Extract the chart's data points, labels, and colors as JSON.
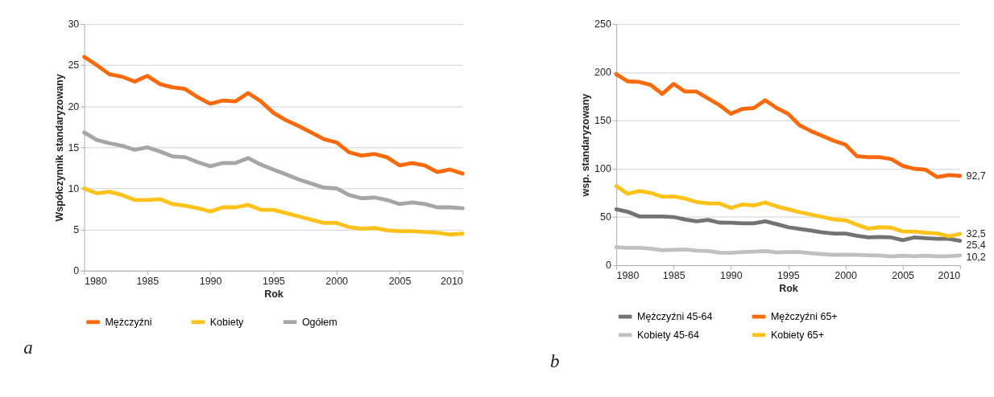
{
  "chart_data": [
    {
      "type": "line",
      "xlabel": "Rok",
      "ylabel": "Współczynnik standaryzowany",
      "x": [
        1980,
        1981,
        1982,
        1983,
        1984,
        1985,
        1986,
        1987,
        1988,
        1989,
        1990,
        1991,
        1992,
        1993,
        1994,
        1995,
        1996,
        1997,
        1998,
        1999,
        2000,
        2001,
        2002,
        2003,
        2004,
        2005,
        2006,
        2007,
        2008,
        2009,
        2010
      ],
      "xlim": [
        1980,
        2010
      ],
      "xticks": [
        1980,
        1985,
        1990,
        1995,
        2000,
        2005,
        2010
      ],
      "ylim": [
        0,
        30
      ],
      "yticks": [
        0,
        5,
        10,
        15,
        20,
        25,
        30
      ],
      "grid": "y",
      "legend": "bottom",
      "series": [
        {
          "name": "Mężczyźni",
          "color": "#fa6a0a",
          "values": [
            26,
            25,
            23.9,
            23.6,
            23,
            23.7,
            22.7,
            22.3,
            22.1,
            21.1,
            20.3,
            20.7,
            20.6,
            21.6,
            20.6,
            19.2,
            18.3,
            17.6,
            16.8,
            16,
            15.6,
            14.4,
            14,
            14.2,
            13.8,
            12.8,
            13.1,
            12.8,
            12,
            12.3,
            11.8
          ]
        },
        {
          "name": "Kobiety",
          "color": "#ffc21a",
          "values": [
            10,
            9.4,
            9.6,
            9.2,
            8.6,
            8.6,
            8.7,
            8.1,
            7.9,
            7.6,
            7.2,
            7.7,
            7.7,
            8,
            7.4,
            7.4,
            7,
            6.6,
            6.2,
            5.8,
            5.8,
            5.3,
            5.1,
            5.2,
            4.9,
            4.8,
            4.8,
            4.7,
            4.6,
            4.4,
            4.5
          ]
        },
        {
          "name": "Ogółem",
          "color": "#a6a6a6",
          "values": [
            16.8,
            15.9,
            15.5,
            15.2,
            14.7,
            15,
            14.5,
            13.9,
            13.8,
            13.2,
            12.7,
            13.1,
            13.1,
            13.7,
            12.9,
            12.3,
            11.7,
            11.1,
            10.6,
            10.1,
            10,
            9.2,
            8.8,
            8.9,
            8.6,
            8.1,
            8.3,
            8.1,
            7.7,
            7.7,
            7.6
          ]
        }
      ],
      "annotations": [
        "a"
      ]
    },
    {
      "type": "line",
      "xlabel": "Rok",
      "ylabel": "wsp. standaryzowany",
      "x": [
        1980,
        1981,
        1982,
        1983,
        1984,
        1985,
        1986,
        1987,
        1988,
        1989,
        1990,
        1991,
        1992,
        1993,
        1994,
        1995,
        1996,
        1997,
        1998,
        1999,
        2000,
        2001,
        2002,
        2003,
        2004,
        2005,
        2006,
        2007,
        2008,
        2009,
        2010
      ],
      "xlim": [
        1980,
        2010
      ],
      "xticks": [
        1980,
        1985,
        1990,
        1995,
        2000,
        2005,
        2010
      ],
      "ylim": [
        0,
        250
      ],
      "yticks": [
        0,
        50,
        100,
        150,
        200,
        250
      ],
      "grid": "y",
      "legend": "bottom",
      "series": [
        {
          "name": "Mężczyźni 45-64",
          "color": "#737373",
          "values": [
            58,
            55.4,
            50.6,
            50.6,
            50.6,
            50,
            47.4,
            45.6,
            47,
            44.2,
            44,
            43.4,
            43.4,
            45.6,
            42.6,
            39.4,
            37.6,
            36,
            34,
            32.8,
            32.8,
            30.6,
            28.8,
            29.3,
            28.8,
            26,
            28.8,
            28,
            27.5,
            27.5,
            25.4
          ],
          "value_labels": [
            null,
            null,
            null,
            null,
            null,
            null,
            null,
            null,
            null,
            null,
            null,
            null,
            null,
            null,
            null,
            null,
            null,
            null,
            null,
            null,
            null,
            null,
            null,
            null,
            null,
            null,
            null,
            null,
            null,
            null,
            "25,4"
          ]
        },
        {
          "name": "Mężczyźni 65+",
          "color": "#fa6a0a",
          "values": [
            198,
            190.6,
            190,
            187,
            177.5,
            188,
            180,
            180,
            173,
            166,
            157,
            162,
            163,
            171,
            163,
            157,
            145,
            139,
            134,
            129,
            125,
            113,
            112,
            112,
            110,
            103,
            100,
            99,
            91.4,
            93.5,
            92.7
          ],
          "value_labels": [
            null,
            null,
            null,
            null,
            null,
            null,
            null,
            null,
            null,
            null,
            null,
            null,
            null,
            null,
            null,
            null,
            null,
            null,
            null,
            null,
            null,
            null,
            null,
            null,
            null,
            null,
            null,
            null,
            null,
            null,
            "92,7"
          ]
        },
        {
          "name": "Kobiety 45-64",
          "color": "#c0c0c0",
          "values": [
            18.7,
            18.1,
            18.1,
            17.3,
            15.5,
            16,
            16.3,
            15.2,
            14.7,
            13,
            12.8,
            13.6,
            14.1,
            14.7,
            13.3,
            13.6,
            13.6,
            12.5,
            11.5,
            10.7,
            10.9,
            10.7,
            10.4,
            10.1,
            9.1,
            9.9,
            9.3,
            9.9,
            9.3,
            9.3,
            10.2
          ],
          "value_labels": [
            null,
            null,
            null,
            null,
            null,
            null,
            null,
            null,
            null,
            null,
            null,
            null,
            null,
            null,
            null,
            null,
            null,
            null,
            null,
            null,
            null,
            null,
            null,
            null,
            null,
            null,
            null,
            null,
            null,
            null,
            "10,2"
          ]
        },
        {
          "name": "Kobiety 65+",
          "color": "#ffc21a",
          "values": [
            82,
            74,
            77,
            75,
            71,
            71.4,
            69,
            65.6,
            64,
            64,
            59.4,
            63,
            62,
            65,
            61,
            58,
            55,
            52.5,
            50,
            47.4,
            46.6,
            42,
            38,
            39.4,
            39,
            35,
            35,
            33.6,
            33,
            30,
            32.5
          ],
          "value_labels": [
            null,
            null,
            null,
            null,
            null,
            null,
            null,
            null,
            null,
            null,
            null,
            null,
            null,
            null,
            null,
            null,
            null,
            null,
            null,
            null,
            null,
            null,
            null,
            null,
            null,
            null,
            null,
            null,
            null,
            null,
            "32,5"
          ]
        }
      ],
      "annotations": [
        "b"
      ]
    }
  ]
}
